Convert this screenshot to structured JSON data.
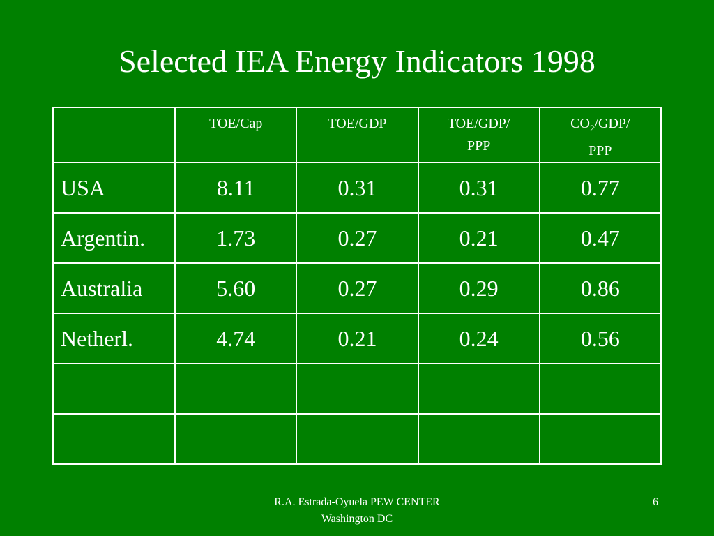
{
  "title": "Selected IEA Energy Indicators 1998",
  "table": {
    "headers": [
      {
        "line1": "",
        "line2": ""
      },
      {
        "line1": "TOE/Cap",
        "line2": ""
      },
      {
        "line1": "TOE/GDP",
        "line2": ""
      },
      {
        "line1": "TOE/GDP/",
        "line2": "PPP"
      },
      {
        "line1_pre": "CO",
        "line1_sub": "2",
        "line1_post": "/GDP/",
        "line2": "PPP"
      }
    ],
    "rows": [
      {
        "label": "USA",
        "values": [
          "8.11",
          "0.31",
          "0.31",
          "0.77"
        ]
      },
      {
        "label": "Argentin.",
        "values": [
          "1.73",
          "0.27",
          "0.21",
          "0.47"
        ]
      },
      {
        "label": "Australia",
        "values": [
          "5.60",
          "0.27",
          "0.29",
          "0.86"
        ]
      },
      {
        "label": "Netherl.",
        "values": [
          "4.74",
          "0.21",
          "0.24",
          "0.56"
        ]
      },
      {
        "label": "",
        "values": [
          "",
          "",
          "",
          ""
        ]
      },
      {
        "label": "",
        "values": [
          "",
          "",
          "",
          ""
        ]
      }
    ]
  },
  "footer": {
    "line1": "R.A. Estrada-Oyuela PEW CENTER",
    "line2": "Washington DC"
  },
  "slide_number": "6",
  "colors": {
    "background": "#008000",
    "text": "#ffffff",
    "border": "#ffffff"
  }
}
